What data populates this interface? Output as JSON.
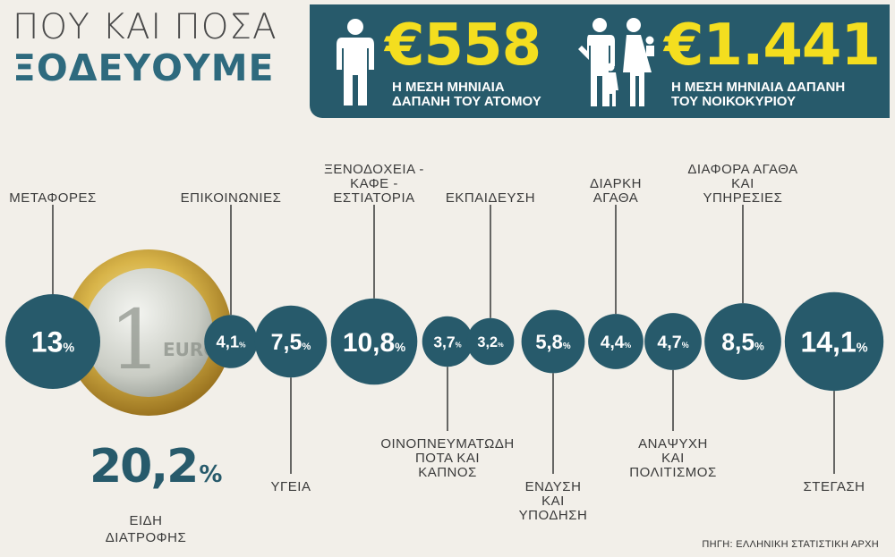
{
  "title": {
    "line1": "ΠΟΥ ΚΑΙ ΠΟΣΑ",
    "line2": "ΞΟΔΕΥΟΥΜΕ"
  },
  "banner": {
    "person": {
      "amount": "€558",
      "caption_line1": "Η ΜΕΣΗ ΜΗΝΙΑΙΑ",
      "caption_line2": "ΔΑΠΑΝΗ ΤΟΥ ΑΤΟΜΟΥ"
    },
    "household": {
      "amount": "€1.441",
      "caption_line1": "Η ΜΕΣΗ ΜΗΝΙΑΙΑ ΔΑΠΑΝΗ",
      "caption_line2": "ΤΟΥ ΝΟΙΚΟΚΥΡΙΟΥ"
    }
  },
  "chart_data": {
    "type": "bubble",
    "unit": "%",
    "categories": [
      {
        "label": [
          "ΜΕΤΑΦΟΡΕΣ"
        ],
        "value": 13,
        "display": "13",
        "label_pos": "above"
      },
      {
        "label": [
          "ΕΠΙΚΟΙΝΩΝΙΕΣ"
        ],
        "value": 4.1,
        "display": "4,1",
        "label_pos": "above"
      },
      {
        "label": [
          "ΥΓΕΙΑ"
        ],
        "value": 7.5,
        "display": "7,5",
        "label_pos": "below"
      },
      {
        "label": [
          "ΞΕΝΟΔΟΧΕΙΑ -",
          "ΚΑΦΕ -",
          "ΕΣΤΙΑΤΟΡΙΑ"
        ],
        "value": 10.8,
        "display": "10,8",
        "label_pos": "above"
      },
      {
        "label": [
          "ΟΙΝΟΠΝΕΥΜΑΤΩΔΗ",
          "ΠΟΤΑ ΚΑΙ",
          "ΚΑΠΝΟΣ"
        ],
        "value": 3.7,
        "display": "3,7",
        "label_pos": "below"
      },
      {
        "label": [
          "ΕΚΠΑΙΔΕΥΣΗ"
        ],
        "value": 3.2,
        "display": "3,2",
        "label_pos": "above"
      },
      {
        "label": [
          "ΕΝΔΥΣΗ",
          "ΚΑΙ",
          "ΥΠΟΔΗΣΗ"
        ],
        "value": 5.8,
        "display": "5,8",
        "label_pos": "below"
      },
      {
        "label": [
          "ΔΙΑΡΚΗ",
          "ΑΓΑΘΑ"
        ],
        "value": 4.4,
        "display": "4,4",
        "label_pos": "above"
      },
      {
        "label": [
          "ΑΝΑΨΥΧΗ",
          "ΚΑΙ",
          "ΠΟΛΙΤΙΣΜΟΣ"
        ],
        "value": 4.7,
        "display": "4,7",
        "label_pos": "below"
      },
      {
        "label": [
          "ΔΙΑΦΟΡΑ ΑΓΑΘΑ",
          "ΚΑΙ",
          "ΥΠΗΡΕΣΙΕΣ"
        ],
        "value": 8.5,
        "display": "8,5",
        "label_pos": "above"
      },
      {
        "label": [
          "ΣΤΕΓΑΣΗ"
        ],
        "value": 14.1,
        "display": "14,1",
        "label_pos": "below"
      }
    ],
    "highlight": {
      "label": [
        "ΕΙΔΗ",
        "ΔΙΑΤΡΟΦΗΣ"
      ],
      "value": 20.2,
      "display": "20,2"
    },
    "colors": {
      "bubble": "#275a6b",
      "coin_gold": "#d4b24a",
      "coin_silver": "#d9dcd6"
    }
  },
  "source": "ΠΗΓΗ: ΕΛΛΗΝΙΚΗ ΣΤΑΤΙΣΤΙΚΗ ΑΡΧΗ"
}
